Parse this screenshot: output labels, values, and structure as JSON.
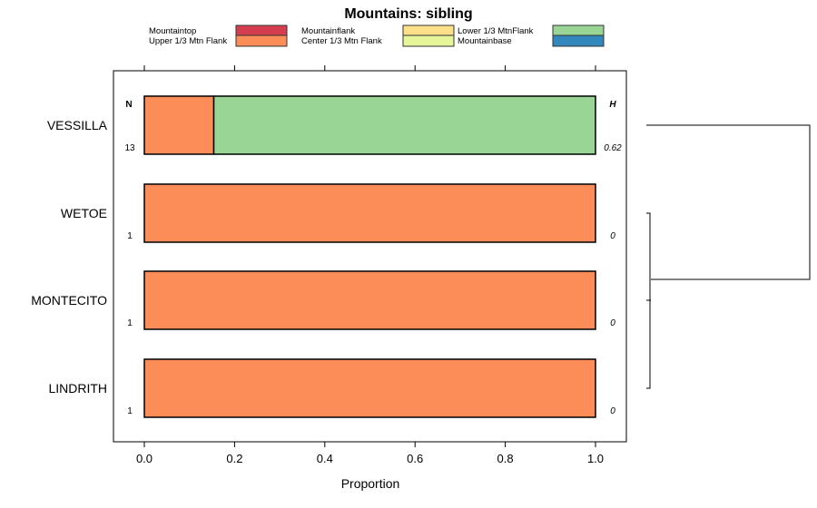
{
  "chart_data": {
    "type": "bar",
    "orientation": "horizontal",
    "stacked": true,
    "title": "Mountains: sibling",
    "xlabel": "Proportion",
    "ylabel": "",
    "xlim": [
      0,
      1
    ],
    "x_ticks": [
      "0.0",
      "0.2",
      "0.4",
      "0.6",
      "0.8",
      "1.0"
    ],
    "x_tick_values": [
      0,
      0.2,
      0.4,
      0.6,
      0.8,
      1.0
    ],
    "legend": [
      {
        "name": "Mountaintop",
        "color": "#d53e4f"
      },
      {
        "name": "Upper 1/3 Mtn Flank",
        "color": "#fc8d59"
      },
      {
        "name": "Mountainflank",
        "color": "#fee08b"
      },
      {
        "name": "Center 1/3 Mtn Flank",
        "color": "#e6f598"
      },
      {
        "name": "Lower 1/3 MtnFlank",
        "color": "#99d594"
      },
      {
        "name": "Mountainbase",
        "color": "#3288bd"
      }
    ],
    "legend_position": "top",
    "n_header": "N",
    "h_header": "H",
    "categories": [
      "VESSILLA",
      "WETOE",
      "MONTECITO",
      "LINDRITH"
    ],
    "n_values": [
      "13",
      "1",
      "1",
      "1"
    ],
    "h_values": [
      "0.62",
      "0",
      "0",
      "0"
    ],
    "series": [
      {
        "name": "Mountaintop",
        "values": [
          0,
          0,
          0,
          0
        ]
      },
      {
        "name": "Upper 1/3 Mtn Flank",
        "values": [
          0.154,
          1,
          1,
          1
        ]
      },
      {
        "name": "Mountainflank",
        "values": [
          0,
          0,
          0,
          0
        ]
      },
      {
        "name": "Center 1/3 Mtn Flank",
        "values": [
          0,
          0,
          0,
          0
        ]
      },
      {
        "name": "Lower 1/3 MtnFlank",
        "values": [
          0.846,
          0,
          0,
          0
        ]
      },
      {
        "name": "Mountainbase",
        "values": [
          0,
          0,
          0,
          0
        ]
      }
    ],
    "dendrogram": "VESSILLA separate from cluster of WETOE, MONTECITO, LINDRITH"
  }
}
